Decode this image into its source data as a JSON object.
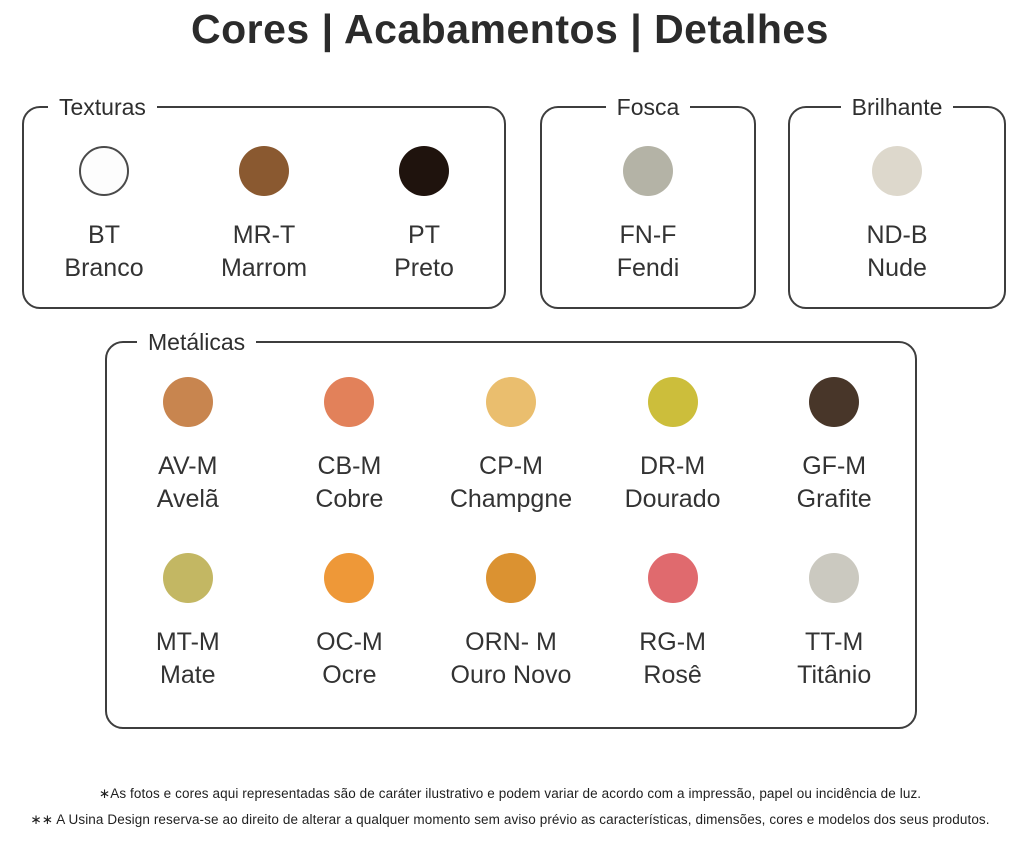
{
  "title": "Cores | Acabamentos | Detalhes",
  "groups": [
    {
      "label": "Texturas",
      "swatches": [
        {
          "code": "BT",
          "name": "Branco",
          "color": "#fdfdfd"
        },
        {
          "code": "MR-T",
          "name": "Marrom",
          "color": "#8a5930"
        },
        {
          "code": "PT",
          "name": "Preto",
          "color": "#1f130d"
        }
      ]
    },
    {
      "label": "Fosca",
      "swatches": [
        {
          "code": "FN-F",
          "name": "Fendi",
          "color": "#b4b3a6"
        }
      ]
    },
    {
      "label": "Brilhante",
      "swatches": [
        {
          "code": "ND-B",
          "name": "Nude",
          "color": "#ddd8cc"
        }
      ]
    },
    {
      "label": "Metálicas",
      "swatches": [
        {
          "code": "AV-M",
          "name": "Avelã",
          "color": "#c8854f"
        },
        {
          "code": "CB-M",
          "name": "Cobre",
          "color": "#e2815a"
        },
        {
          "code": "CP-M",
          "name": "Champgne",
          "color": "#eabe6e"
        },
        {
          "code": "DR-M",
          "name": "Dourado",
          "color": "#ccbe3b"
        },
        {
          "code": "GF-M",
          "name": "Grafite",
          "color": "#483629"
        },
        {
          "code": "MT-M",
          "name": "Mate",
          "color": "#c3b763"
        },
        {
          "code": "OC-M",
          "name": "Ocre",
          "color": "#ee9838"
        },
        {
          "code": "ORN- M",
          "name": "Ouro Novo",
          "color": "#db9231"
        },
        {
          "code": "RG-M",
          "name": "Rosê",
          "color": "#e06a6e"
        },
        {
          "code": "TT-M",
          "name": "Titânio",
          "color": "#cbc9c0"
        }
      ]
    }
  ],
  "footnotes": [
    "∗As fotos e cores aqui representadas são de caráter ilustrativo e podem variar de acordo com a impressão, papel ou incidência de luz.",
    "∗∗ A Usina Design reserva-se ao direito de alterar a qualquer momento sem  aviso prévio  as características, dimensões, cores e modelos dos seus produtos."
  ]
}
